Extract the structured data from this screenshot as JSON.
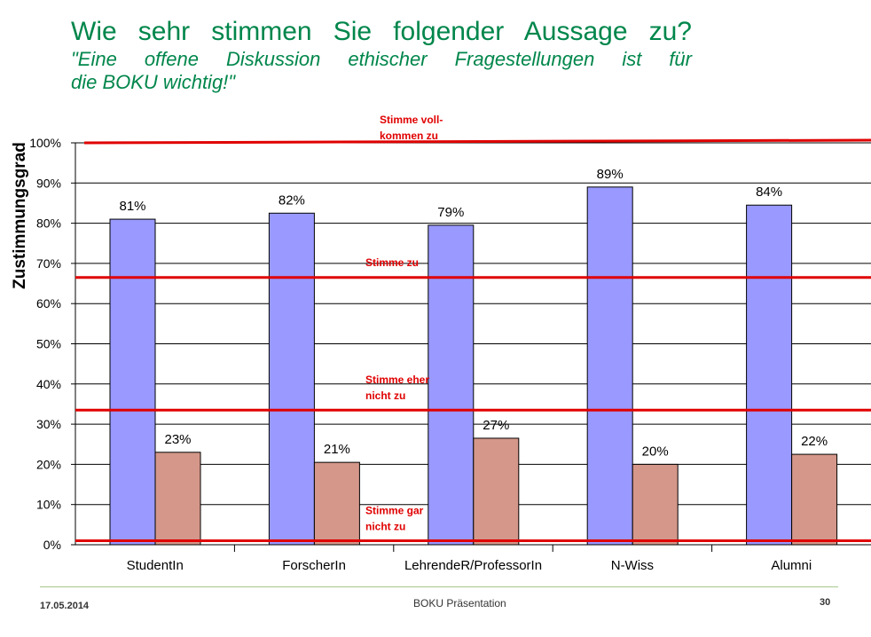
{
  "slide": {
    "title_line1": "Wie sehr stimmen Sie folgender Aussage zu?",
    "title_line2": "\"Eine offene Diskussion ethischer Fragestellungen ist für",
    "title_line3": "die BOKU wichtig!\""
  },
  "footer": {
    "date": "17.05.2014",
    "center": "BOKU Präsentation",
    "page": "30"
  },
  "chart_data": {
    "type": "bar",
    "ylabel": "Zustimmungsgrad",
    "xlabel": "",
    "ylim": [
      0,
      100
    ],
    "yticks": [
      "0%",
      "10%",
      "20%",
      "30%",
      "40%",
      "50%",
      "60%",
      "70%",
      "80%",
      "90%",
      "100%"
    ],
    "grid": true,
    "categories": [
      "StudentIn",
      "ForscherIn",
      "LehrendeR/ProfessorIn",
      "N-Wiss",
      "Alumni"
    ],
    "series": [
      {
        "color": "#9999ff",
        "values": [
          81,
          82.5,
          79.5,
          89,
          84.5
        ],
        "labels": [
          "81%",
          "82%",
          "79%",
          "89%",
          "84%"
        ]
      },
      {
        "color": "#d4978a",
        "values": [
          23,
          20.5,
          26.5,
          20,
          22.5
        ],
        "labels": [
          "23%",
          "21%",
          "27%",
          "20%",
          "22%"
        ]
      }
    ],
    "reference_lines": [
      {
        "value": 100,
        "label_lines": [
          "Stimme voll-",
          "kommen zu"
        ],
        "color": "#e00000"
      },
      {
        "value": 66.5,
        "label_lines": [
          "Stimme zu"
        ],
        "color": "#e00000"
      },
      {
        "value": 33.5,
        "label_lines": [
          "Stimme eher",
          "nicht zu"
        ],
        "color": "#e00000"
      },
      {
        "value": 1,
        "label_lines": [
          "Stimme gar",
          "nicht zu"
        ],
        "color": "#e00000"
      }
    ]
  }
}
